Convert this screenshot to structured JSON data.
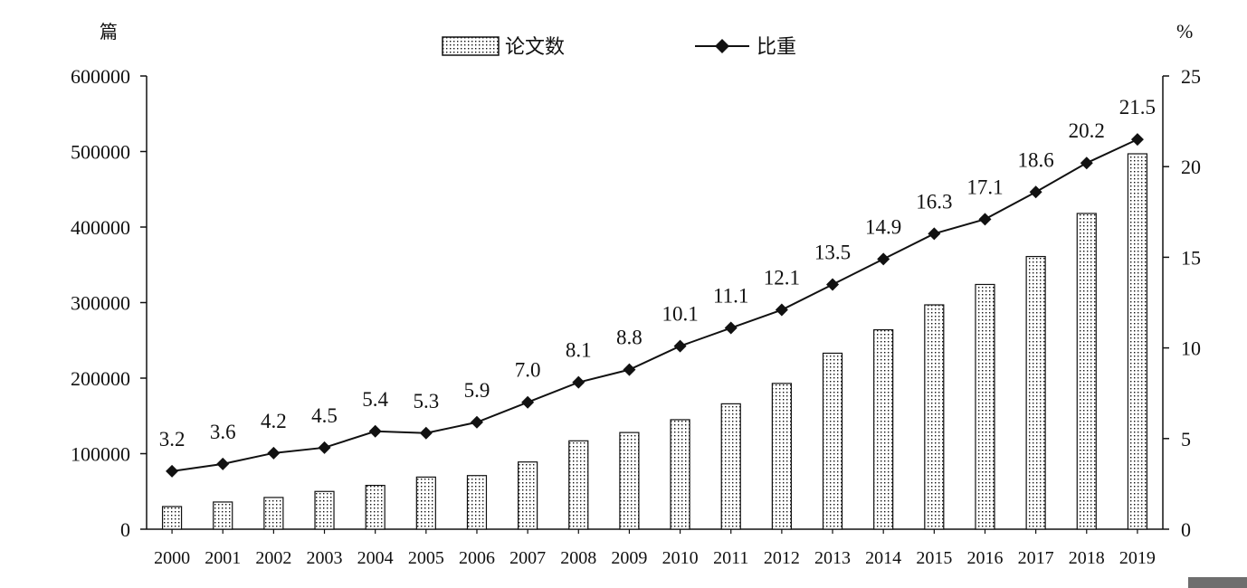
{
  "chart_data": {
    "type": "bar+line",
    "categories": [
      "2000",
      "2001",
      "2002",
      "2003",
      "2004",
      "2005",
      "2006",
      "2007",
      "2008",
      "2009",
      "2010",
      "2011",
      "2012",
      "2013",
      "2014",
      "2015",
      "2016",
      "2017",
      "2018",
      "2019"
    ],
    "series": [
      {
        "name": "论文数",
        "type": "bar",
        "axis": "left",
        "values": [
          30000,
          36000,
          42000,
          50000,
          58000,
          69000,
          71000,
          89000,
          117000,
          128000,
          145000,
          166000,
          193000,
          233000,
          264000,
          297000,
          324000,
          361000,
          418000,
          497000
        ]
      },
      {
        "name": "比重",
        "type": "line",
        "axis": "right",
        "values": [
          3.2,
          3.6,
          4.2,
          4.5,
          5.4,
          5.3,
          5.9,
          7.0,
          8.1,
          8.8,
          10.1,
          11.1,
          12.1,
          13.5,
          14.9,
          16.3,
          17.1,
          18.6,
          20.2,
          21.5
        ],
        "labels": [
          "3.2",
          "3.6",
          "4.2",
          "4.5",
          "5.4",
          "5.3",
          "5.9",
          "7.0",
          "8.1",
          "8.8",
          "10.1",
          "11.1",
          "12.1",
          "13.5",
          "14.9",
          "16.3",
          "17.1",
          "18.6",
          "20.2",
          "21.5"
        ]
      }
    ],
    "left_axis": {
      "unit": "篇",
      "ylim": [
        0,
        600000
      ],
      "ticks": [
        0,
        100000,
        200000,
        300000,
        400000,
        500000,
        600000
      ],
      "tick_labels": [
        "0",
        "100000",
        "200000",
        "300000",
        "400000",
        "500000",
        "600000"
      ]
    },
    "right_axis": {
      "unit": "%",
      "ylim": [
        0,
        25
      ],
      "ticks": [
        0,
        5,
        10,
        15,
        20,
        25
      ],
      "tick_labels": [
        "0",
        "5",
        "10",
        "15",
        "20",
        "25"
      ]
    },
    "legend": {
      "placement": "top-center",
      "items": [
        "论文数",
        "比重"
      ]
    },
    "grid": false
  }
}
